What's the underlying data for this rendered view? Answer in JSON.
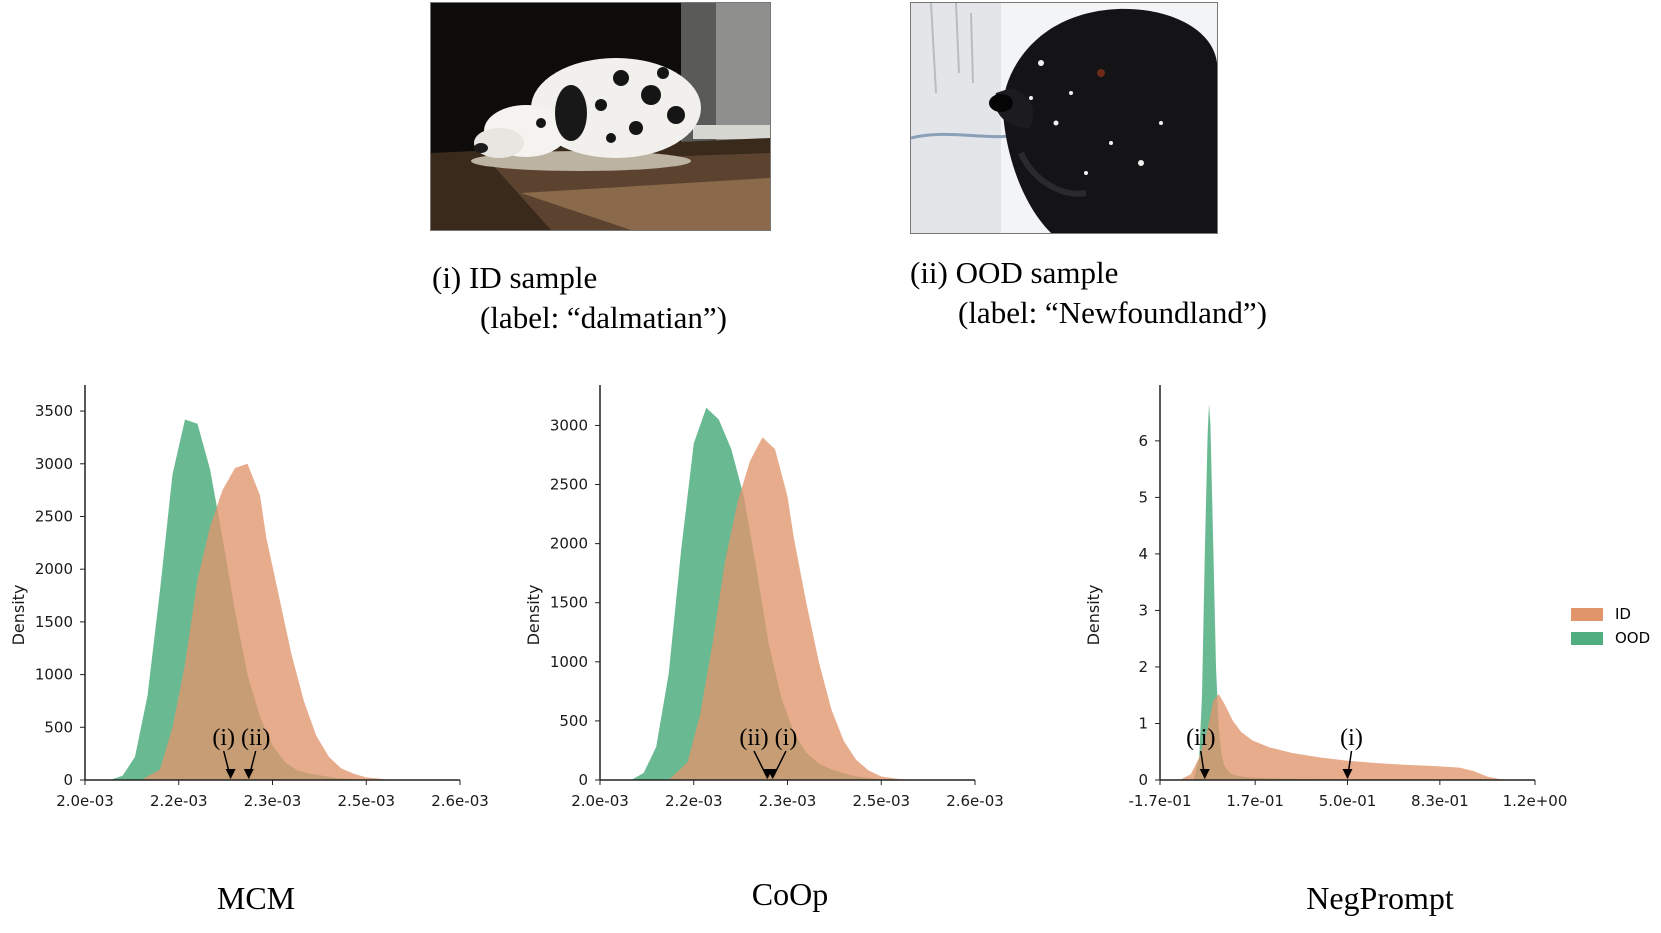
{
  "samples": [
    {
      "caption_line1": "(i) ID sample",
      "caption_line2": "(label: “dalmatian”)"
    },
    {
      "caption_line1": "(ii) OOD sample",
      "caption_line2": "(label: “Newfoundland”)"
    }
  ],
  "colors": {
    "ID": "#e0956b",
    "OOD": "#4fae80",
    "arrow": "#000000"
  },
  "legend": [
    {
      "label": "ID",
      "color": "#e0956b"
    },
    {
      "label": "OOD",
      "color": "#4fae80"
    }
  ],
  "chart_data": [
    {
      "type": "area",
      "title": "MCM",
      "ylabel": "Density",
      "xlabel": "",
      "xlim": [
        0.002,
        0.0026
      ],
      "ylim": [
        0,
        3700
      ],
      "xticks": [
        0.002,
        0.00215,
        0.0023,
        0.00245,
        0.0026
      ],
      "xtick_labels": [
        "2.0e-03",
        "2.2e-03",
        "2.3e-03",
        "2.5e-03",
        "2.6e-03"
      ],
      "yticks": [
        0,
        500,
        1000,
        1500,
        2000,
        2500,
        3000,
        3500
      ],
      "ytick_labels": [
        "0",
        "500",
        "1000",
        "1500",
        "2000",
        "2500",
        "3000",
        "3500"
      ],
      "series": [
        {
          "name": "ID",
          "x": [
            0.00209,
            0.00212,
            0.00214,
            0.00216,
            0.00218,
            0.0022,
            0.00222,
            0.00224,
            0.00226,
            0.00228,
            0.00229,
            0.00231,
            0.00233,
            0.00235,
            0.00237,
            0.00239,
            0.00241,
            0.00243,
            0.00245,
            0.00248,
            0.00251
          ],
          "y": [
            0,
            100,
            500,
            1100,
            1900,
            2400,
            2750,
            2960,
            3000,
            2700,
            2300,
            1750,
            1200,
            750,
            420,
            220,
            110,
            60,
            25,
            8,
            0
          ]
        },
        {
          "name": "OOD",
          "x": [
            0.00204,
            0.00206,
            0.00208,
            0.0021,
            0.00212,
            0.00214,
            0.00216,
            0.00218,
            0.0022,
            0.00222,
            0.00224,
            0.00226,
            0.00228,
            0.0023,
            0.00232,
            0.00234,
            0.00236,
            0.00238,
            0.0024,
            0.00243,
            0.00246
          ],
          "y": [
            0,
            40,
            220,
            800,
            1800,
            2900,
            3420,
            3380,
            2950,
            2300,
            1600,
            1000,
            600,
            330,
            170,
            90,
            60,
            40,
            20,
            8,
            0
          ]
        }
      ],
      "markers": [
        {
          "label": "(i)",
          "x": 0.002233
        },
        {
          "label": "(ii)",
          "x": 0.002262
        }
      ]
    },
    {
      "type": "area",
      "title": "CoOp",
      "ylabel": "Density",
      "xlabel": "",
      "xlim": [
        0.002,
        0.0026
      ],
      "ylim": [
        0,
        3300
      ],
      "xticks": [
        0.002,
        0.00215,
        0.0023,
        0.00245,
        0.0026
      ],
      "xtick_labels": [
        "2.0e-03",
        "2.2e-03",
        "2.3e-03",
        "2.5e-03",
        "2.6e-03"
      ],
      "yticks": [
        0,
        500,
        1000,
        1500,
        2000,
        2500,
        3000
      ],
      "ytick_labels": [
        "0",
        "500",
        "1000",
        "1500",
        "2000",
        "2500",
        "3000"
      ],
      "series": [
        {
          "name": "ID",
          "x": [
            0.00211,
            0.00214,
            0.00216,
            0.00218,
            0.0022,
            0.00222,
            0.00224,
            0.00226,
            0.00228,
            0.0023,
            0.00231,
            0.00233,
            0.00235,
            0.00237,
            0.00239,
            0.00241,
            0.00243,
            0.00245,
            0.00248,
            0.00251
          ],
          "y": [
            0,
            150,
            550,
            1150,
            1850,
            2350,
            2700,
            2900,
            2800,
            2400,
            2050,
            1500,
            1000,
            600,
            330,
            170,
            80,
            30,
            8,
            0
          ]
        },
        {
          "name": "OOD",
          "x": [
            0.00205,
            0.00207,
            0.00209,
            0.00211,
            0.00213,
            0.00215,
            0.00217,
            0.00219,
            0.00221,
            0.00223,
            0.00225,
            0.00227,
            0.00229,
            0.00231,
            0.00233,
            0.00235,
            0.00237,
            0.00239,
            0.00241,
            0.00244,
            0.00247
          ],
          "y": [
            0,
            60,
            280,
            900,
            1950,
            2850,
            3150,
            3050,
            2800,
            2400,
            1800,
            1150,
            700,
            400,
            230,
            140,
            90,
            55,
            30,
            10,
            0
          ]
        }
      ],
      "markers": [
        {
          "label": "(ii)",
          "x": 0.002268
        },
        {
          "label": "(i)",
          "x": 0.002276
        }
      ]
    },
    {
      "type": "area",
      "title": "NegPrompt",
      "ylabel": "Density",
      "xlabel": "",
      "xlim": [
        -0.17,
        1.17
      ],
      "ylim": [
        0,
        6.9
      ],
      "xticks": [
        -0.17,
        0.17,
        0.5,
        0.83,
        1.17
      ],
      "xtick_labels": [
        "-1.7e-01",
        "1.7e-01",
        "5.0e-01",
        "8.3e-01",
        "1.2e+00"
      ],
      "yticks": [
        0,
        1,
        2,
        3,
        4,
        5,
        6
      ],
      "ytick_labels": [
        "0",
        "1",
        "2",
        "3",
        "4",
        "5",
        "6"
      ],
      "series": [
        {
          "name": "ID",
          "x": [
            -0.1,
            -0.06,
            -0.03,
            0.0,
            0.02,
            0.04,
            0.06,
            0.09,
            0.12,
            0.16,
            0.22,
            0.3,
            0.4,
            0.5,
            0.6,
            0.7,
            0.8,
            0.9,
            0.95,
            1.0,
            1.04,
            1.08
          ],
          "y": [
            0,
            0.1,
            0.4,
            0.9,
            1.4,
            1.52,
            1.35,
            1.05,
            0.85,
            0.7,
            0.58,
            0.48,
            0.4,
            0.34,
            0.3,
            0.27,
            0.25,
            0.22,
            0.16,
            0.06,
            0.02,
            0
          ]
        },
        {
          "name": "OOD",
          "x": [
            -0.05,
            -0.03,
            -0.02,
            -0.01,
            0.0,
            0.005,
            0.01,
            0.02,
            0.03,
            0.04,
            0.05,
            0.06,
            0.08,
            0.1,
            0.14,
            0.2,
            0.3,
            0.45,
            0.6
          ],
          "y": [
            0,
            0.4,
            1.5,
            4.0,
            6.1,
            6.65,
            6.3,
            4.2,
            2.0,
            0.9,
            0.45,
            0.25,
            0.12,
            0.08,
            0.05,
            0.03,
            0.02,
            0.01,
            0
          ]
        }
      ],
      "markers": [
        {
          "label": "(ii)",
          "x": -0.01
        },
        {
          "label": "(i)",
          "x": 0.5
        }
      ]
    }
  ]
}
